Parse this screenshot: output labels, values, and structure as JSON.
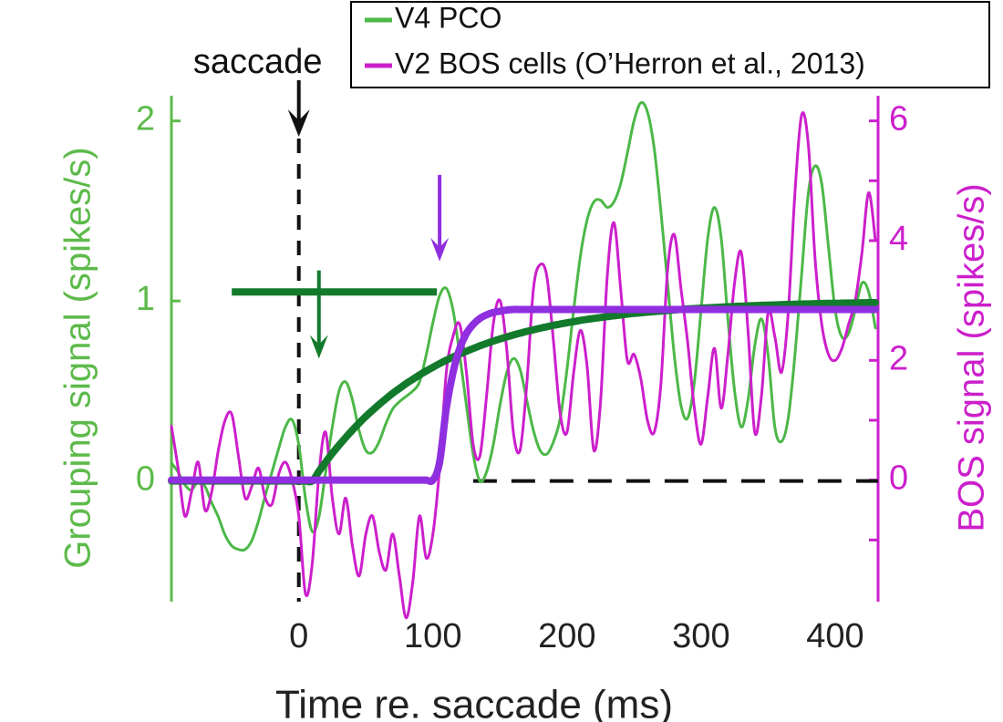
{
  "chart_data": {
    "type": "line",
    "xlabel": "Time re. saccade (ms)",
    "ylabel": "Grouping signal (spikes/s)",
    "y2label": "BOS signal (spikes/s)",
    "xlim": [
      -95,
      432
    ],
    "ylim": [
      -0.67,
      2.14
    ],
    "y2lim": [
      -2.03,
      6.42
    ],
    "xticks": [
      0,
      100,
      200,
      300,
      400
    ],
    "yticks": [
      0,
      1,
      2
    ],
    "y2ticks": [
      0,
      2,
      4,
      6
    ],
    "y2minorticks": [
      -1,
      1,
      3,
      5
    ],
    "ycolor": "#5dba4a",
    "y2color": "#cc1fcc",
    "x": [
      -95,
      -90,
      -85,
      -80,
      -75,
      -70,
      -65,
      -60,
      -55,
      -50,
      -45,
      -40,
      -35,
      -30,
      -25,
      -20,
      -15,
      -10,
      -5,
      0,
      5,
      10,
      15,
      20,
      25,
      30,
      35,
      40,
      45,
      50,
      55,
      60,
      65,
      70,
      75,
      80,
      85,
      90,
      95,
      100,
      105,
      110,
      115,
      120,
      125,
      130,
      135,
      140,
      145,
      150,
      155,
      160,
      165,
      170,
      175,
      180,
      185,
      190,
      195,
      200,
      205,
      210,
      215,
      220,
      225,
      230,
      235,
      240,
      245,
      250,
      255,
      260,
      265,
      270,
      275,
      280,
      285,
      290,
      295,
      300,
      305,
      310,
      315,
      320,
      325,
      330,
      335,
      340,
      345,
      350,
      355,
      360,
      365,
      370,
      375,
      380,
      385,
      390,
      395,
      400,
      405,
      410,
      415,
      420,
      425,
      430
    ],
    "series": [
      {
        "name": "V4 PCO",
        "color": "#4cb848",
        "axis": "y",
        "values": [
          0.1,
          0.05,
          -0.02,
          -0.05,
          0.0,
          -0.03,
          -0.12,
          -0.2,
          -0.3,
          -0.36,
          -0.38,
          -0.38,
          -0.33,
          -0.22,
          -0.08,
          0.05,
          0.18,
          0.3,
          0.34,
          0.2,
          -0.1,
          -0.28,
          -0.2,
          0.05,
          0.3,
          0.5,
          0.55,
          0.45,
          0.28,
          0.17,
          0.16,
          0.22,
          0.32,
          0.4,
          0.44,
          0.47,
          0.5,
          0.55,
          0.7,
          0.88,
          1.03,
          1.07,
          0.95,
          0.7,
          0.42,
          0.15,
          0.0,
          0.05,
          0.2,
          0.42,
          0.6,
          0.68,
          0.62,
          0.45,
          0.28,
          0.17,
          0.15,
          0.22,
          0.35,
          0.62,
          0.95,
          1.25,
          1.45,
          1.55,
          1.56,
          1.52,
          1.55,
          1.65,
          1.82,
          2.0,
          2.1,
          2.05,
          1.85,
          1.5,
          1.1,
          0.7,
          0.42,
          0.35,
          0.55,
          0.95,
          1.35,
          1.52,
          1.35,
          0.9,
          0.5,
          0.3,
          0.45,
          0.75,
          0.9,
          0.7,
          0.3,
          0.22,
          0.35,
          0.7,
          1.15,
          1.6,
          1.75,
          1.65,
          1.3,
          0.95,
          0.8,
          0.82,
          0.95,
          1.1,
          1.05,
          0.85
        ]
      },
      {
        "name": "V2 BOS cells (O’Herron et al., 2013)",
        "color": "#cc1fcc",
        "axis": "y2",
        "values": [
          0.9,
          0.2,
          -0.6,
          -0.2,
          0.3,
          -0.5,
          -0.2,
          0.5,
          1.0,
          1.1,
          0.4,
          -0.3,
          -0.1,
          0.2,
          -0.3,
          -0.4,
          0.1,
          0.3,
          0.0,
          -0.6,
          -1.9,
          -1.4,
          0.1,
          0.8,
          -0.3,
          -0.9,
          -0.3,
          -1.1,
          -1.6,
          -0.9,
          -0.6,
          -1.2,
          -1.5,
          -0.9,
          -1.6,
          -2.3,
          -1.7,
          -0.6,
          -1.3,
          -0.9,
          0.2,
          1.8,
          2.4,
          2.6,
          1.8,
          0.6,
          0.4,
          1.4,
          2.6,
          3.0,
          2.2,
          0.8,
          0.5,
          1.6,
          3.2,
          3.6,
          3.4,
          2.3,
          1.1,
          0.8,
          1.8,
          2.5,
          1.9,
          0.5,
          1.3,
          3.4,
          4.3,
          3.2,
          2.0,
          2.1,
          1.7,
          1.0,
          0.8,
          1.6,
          3.5,
          4.1,
          3.2,
          2.3,
          1.2,
          0.6,
          1.4,
          2.2,
          1.2,
          2.1,
          3.3,
          3.8,
          2.5,
          0.8,
          1.4,
          2.8,
          2.4,
          1.8,
          2.8,
          4.8,
          6.1,
          5.6,
          3.7,
          2.6,
          2.1,
          2.0,
          2.2,
          2.6,
          3.0,
          3.8,
          4.8,
          4.0
        ]
      }
    ],
    "fits": [
      {
        "color": "#137a2c",
        "axis": "y",
        "values": [
          0,
          0,
          0,
          0,
          0,
          0,
          0,
          0,
          0,
          0,
          0,
          0,
          0,
          0,
          0,
          0,
          0,
          0,
          0,
          0,
          0,
          0,
          0.054,
          0.105,
          0.154,
          0.199,
          0.242,
          0.283,
          0.322,
          0.359,
          0.393,
          0.426,
          0.457,
          0.487,
          0.514,
          0.541,
          0.565,
          0.589,
          0.611,
          0.632,
          0.652,
          0.671,
          0.689,
          0.705,
          0.721,
          0.736,
          0.751,
          0.764,
          0.777,
          0.789,
          0.8,
          0.811,
          0.821,
          0.831,
          0.84,
          0.849,
          0.857,
          0.865,
          0.872,
          0.879,
          0.885,
          0.892,
          0.898,
          0.903,
          0.908,
          0.913,
          0.918,
          0.922,
          0.927,
          0.931,
          0.934,
          0.938,
          0.941,
          0.944,
          0.947,
          0.95,
          0.953,
          0.956,
          0.958,
          0.96,
          0.962,
          0.964,
          0.966,
          0.968,
          0.97,
          0.971,
          0.973,
          0.974,
          0.976,
          0.977,
          0.978,
          0.98,
          0.981,
          0.982,
          0.983,
          0.984,
          0.985,
          0.986,
          0.987,
          0.987,
          0.988,
          0.989,
          0.989,
          0.99,
          0.991,
          0.991
        ]
      },
      {
        "color": "#8f2fe0",
        "axis": "y2",
        "values": [
          0,
          0,
          0,
          0,
          0,
          0,
          0,
          0,
          0,
          0,
          0,
          0,
          0,
          0,
          0,
          0,
          0,
          0,
          0,
          0,
          0,
          0,
          0,
          0,
          0,
          0,
          0,
          0,
          0,
          0,
          0,
          0,
          0,
          0,
          0,
          0,
          0,
          0,
          0,
          0,
          0.3,
          1.2,
          1.8,
          2.2,
          2.45,
          2.6,
          2.7,
          2.76,
          2.8,
          2.82,
          2.84,
          2.85,
          2.85,
          2.85,
          2.85,
          2.85,
          2.85,
          2.85,
          2.85,
          2.85,
          2.85,
          2.85,
          2.85,
          2.85,
          2.85,
          2.85,
          2.85,
          2.85,
          2.85,
          2.85,
          2.85,
          2.85,
          2.85,
          2.85,
          2.85,
          2.85,
          2.85,
          2.85,
          2.85,
          2.85,
          2.85,
          2.85,
          2.85,
          2.85,
          2.85,
          2.85,
          2.85,
          2.85,
          2.85,
          2.85,
          2.85,
          2.85,
          2.85,
          2.85,
          2.85,
          2.85,
          2.85,
          2.85,
          2.85,
          2.85,
          2.85,
          2.85,
          2.85,
          2.85,
          2.85,
          2.85
        ]
      }
    ],
    "saccade": {
      "label": "saccade",
      "x": 0
    },
    "zero_line_start": 130,
    "latency_bar": {
      "color": "#137a2c",
      "x": [
        -50,
        103
      ],
      "y": 1.05
    },
    "arrows": [
      {
        "color": "#137a2c",
        "x": 15,
        "y": [
          1.17,
          0.68
        ]
      },
      {
        "color": "#8f2fe0",
        "x": 105,
        "y": [
          1.7,
          1.22
        ]
      }
    ]
  }
}
